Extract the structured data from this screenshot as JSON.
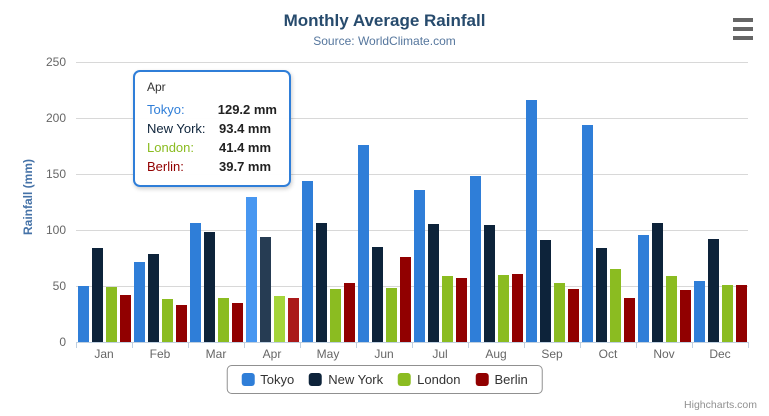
{
  "header": {
    "title": "Monthly Average Rainfall",
    "subtitle": "Source: WorldClimate.com"
  },
  "y_axis": {
    "title": "Rainfall (mm)",
    "tick_labels": [
      "0",
      "50",
      "100",
      "150",
      "200",
      "250"
    ]
  },
  "chart_data": {
    "type": "bar",
    "title": "Monthly Average Rainfall",
    "subtitle": "Source: WorldClimate.com",
    "xlabel": "",
    "ylabel": "Rainfall (mm)",
    "ylim": [
      0,
      250
    ],
    "ytick_interval": 50,
    "grid": true,
    "legend_position": "bottom",
    "categories": [
      "Jan",
      "Feb",
      "Mar",
      "Apr",
      "May",
      "Jun",
      "Jul",
      "Aug",
      "Sep",
      "Oct",
      "Nov",
      "Dec"
    ],
    "series": [
      {
        "name": "Tokyo",
        "color": "#2F7ED8",
        "hover_color": "#4897F1",
        "values": [
          49.9,
          71.5,
          106.4,
          129.2,
          144.0,
          176.0,
          135.6,
          148.5,
          216.4,
          194.1,
          95.6,
          54.4
        ]
      },
      {
        "name": "New York",
        "color": "#0D233A",
        "hover_color": "#263C53",
        "values": [
          83.6,
          78.8,
          98.5,
          93.4,
          106.0,
          84.5,
          105.0,
          104.3,
          91.2,
          83.5,
          106.6,
          92.3
        ]
      },
      {
        "name": "London",
        "color": "#8BBC21",
        "hover_color": "#A4D53A",
        "values": [
          48.9,
          38.8,
          39.3,
          41.4,
          47.0,
          48.3,
          59.0,
          59.6,
          52.4,
          65.2,
          59.3,
          51.2
        ]
      },
      {
        "name": "Berlin",
        "color": "#910000",
        "hover_color": "#AA1919",
        "values": [
          42.4,
          33.2,
          34.5,
          39.7,
          52.6,
          75.5,
          57.4,
          60.4,
          47.6,
          39.1,
          46.8,
          51.1
        ]
      }
    ],
    "hovered_category": "Apr",
    "hovered_category_index": 3
  },
  "tooltip": {
    "header": "Apr",
    "rows": [
      {
        "name": "Tokyo:",
        "value": "129.2 mm",
        "color": "#2F7ED8"
      },
      {
        "name": "New York:",
        "value": "93.4 mm",
        "color": "#0D233A"
      },
      {
        "name": "London:",
        "value": "41.4 mm",
        "color": "#8BBC21"
      },
      {
        "name": "Berlin:",
        "value": "39.7 mm",
        "color": "#910000"
      }
    ]
  },
  "legend": {
    "items": [
      "Tokyo",
      "New York",
      "London",
      "Berlin"
    ]
  },
  "credits": {
    "label": "Highcharts.com"
  },
  "icons": {
    "context_menu": "hamburger-menu-icon"
  },
  "colors": {
    "title_text": "#274b6d",
    "subtitle_text": "#55769d",
    "yaxis_title_text": "#4572a7",
    "axis_label_text": "#666666",
    "gridline": "#d8d8d8",
    "axis_line": "#c0d0e0",
    "tooltip_border": "#2f7ed8",
    "legend_border": "#909090",
    "credits_text": "#909090"
  }
}
